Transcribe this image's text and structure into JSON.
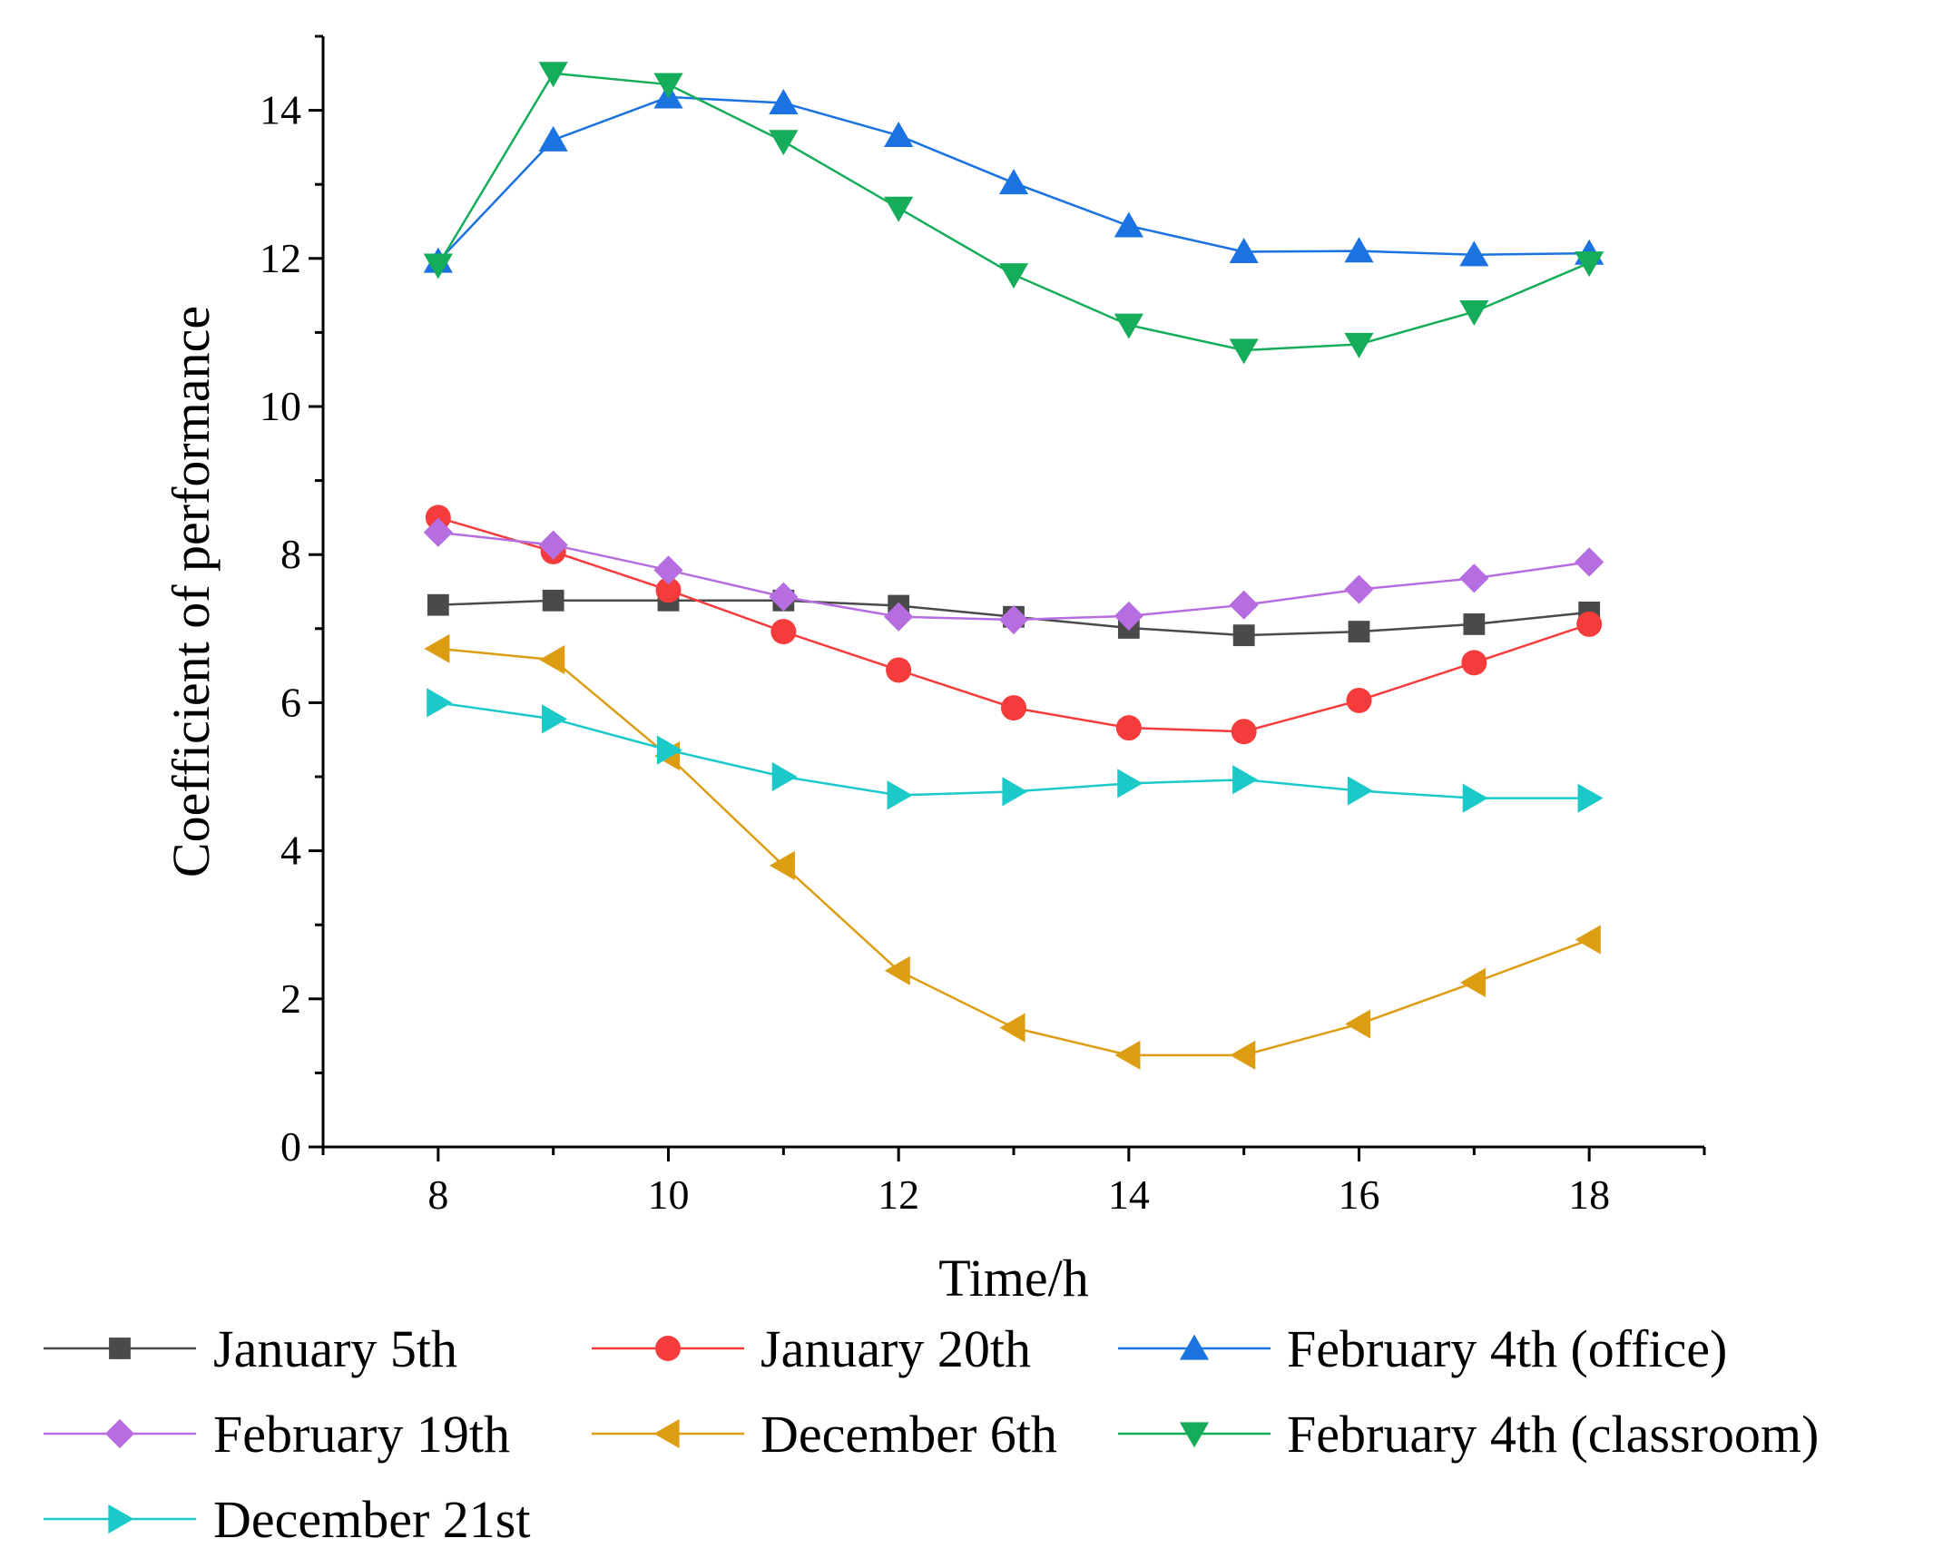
{
  "chart_data": {
    "type": "line",
    "title": "",
    "xlabel": "Time/h",
    "ylabel": "Coefficient of performance",
    "xlim": [
      7,
      19
    ],
    "ylim": [
      0,
      15
    ],
    "xticks": [
      8,
      10,
      12,
      14,
      16,
      18
    ],
    "yticks": [
      0,
      2,
      4,
      6,
      8,
      10,
      12,
      14
    ],
    "grid": false,
    "legend_position": "bottom",
    "x": [
      8,
      9,
      10,
      11,
      12,
      13,
      14,
      15,
      16,
      17,
      18
    ],
    "series": [
      {
        "name": "January 5th",
        "marker": "square",
        "color": "#4a4a4a",
        "values": [
          7.32,
          7.38,
          7.38,
          7.38,
          7.31,
          7.16,
          7.01,
          6.91,
          6.96,
          7.06,
          7.22
        ]
      },
      {
        "name": "January 20th",
        "marker": "circle",
        "color": "#f53c3c",
        "values": [
          8.5,
          8.04,
          7.52,
          6.96,
          6.44,
          5.93,
          5.66,
          5.61,
          6.03,
          6.54,
          7.06
        ]
      },
      {
        "name": "February 4th (office)",
        "marker": "triangle-up",
        "color": "#1a73e0",
        "values": [
          11.96,
          13.6,
          14.18,
          14.1,
          13.66,
          13.02,
          12.44,
          12.09,
          12.1,
          12.05,
          12.07
        ]
      },
      {
        "name": "February 19th",
        "marker": "diamond",
        "color": "#b56de0",
        "values": [
          8.3,
          8.13,
          7.79,
          7.43,
          7.16,
          7.12,
          7.17,
          7.32,
          7.53,
          7.68,
          7.9
        ]
      },
      {
        "name": "December 6th",
        "marker": "triangle-left",
        "color": "#dc9d12",
        "values": [
          6.73,
          6.58,
          5.28,
          3.8,
          2.38,
          1.61,
          1.24,
          1.24,
          1.66,
          2.22,
          2.8
        ]
      },
      {
        "name": "February 4th (classroom)",
        "marker": "triangle-down",
        "color": "#16ad5a",
        "values": [
          11.91,
          14.5,
          14.35,
          13.58,
          12.68,
          11.78,
          11.1,
          10.76,
          10.84,
          11.28,
          11.94
        ]
      },
      {
        "name": "December 21st",
        "marker": "triangle-right",
        "color": "#1cc9c9",
        "values": [
          6.0,
          5.78,
          5.36,
          5.0,
          4.75,
          4.8,
          4.91,
          4.96,
          4.81,
          4.71,
          4.71
        ]
      }
    ]
  }
}
